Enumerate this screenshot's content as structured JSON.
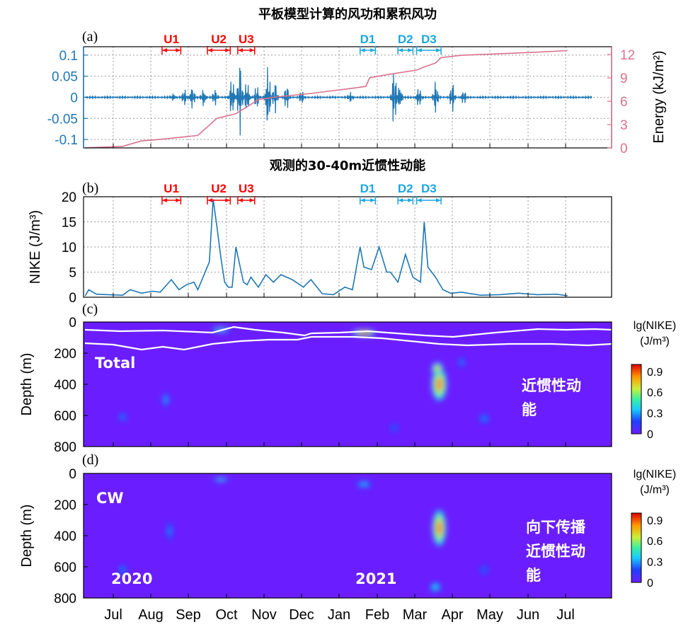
{
  "chart_data": [
    {
      "panel": "(a)",
      "type": "line",
      "title": "平板模型计算的风功和累积风功",
      "x_tick_labels": [
        "Jul",
        "Aug",
        "Sep",
        "Oct",
        "Nov",
        "Dec",
        "Jan",
        "Feb",
        "Mar",
        "Apr",
        "May",
        "Jun",
        "Jul"
      ],
      "ylim_left": [
        -0.12,
        0.12
      ],
      "yticks_left": [
        "0.1",
        "0.05",
        "0",
        "-0.05",
        "-0.1"
      ],
      "ylim_right": [
        0,
        13
      ],
      "yticks_right": [
        "12",
        "9",
        "6",
        "3",
        "0"
      ],
      "ylabel_right": "Energy (kJ/m²)",
      "grid": true,
      "series": [
        {
          "name": "",
          "color": "#1f77b4",
          "axis": "left",
          "note_values": "oscillating wind work; peaks ~0.1 near mid-Oct and early Nov"
        },
        {
          "color": "#d9728f",
          "axis": "right",
          "x_month_index": [
            0.0,
            1.0,
            1.5,
            2.0,
            3.0,
            3.5,
            4.0,
            4.4,
            4.6,
            5.0,
            6.0,
            7.0,
            7.45,
            7.55,
            8.0,
            8.8,
            9.0,
            9.3,
            9.45,
            10.0,
            11.0,
            12.0,
            12.8
          ],
          "values": [
            0.0,
            0.2,
            0.9,
            1.1,
            1.6,
            3.8,
            4.4,
            5.6,
            6.2,
            6.5,
            7.0,
            7.6,
            7.9,
            9.0,
            9.4,
            10.0,
            10.4,
            10.9,
            11.6,
            11.9,
            12.1,
            12.3,
            12.5
          ]
        }
      ],
      "events": [
        {
          "label": "U1",
          "color": "#ff0000",
          "start": 2.05,
          "end": 2.55
        },
        {
          "label": "U2",
          "color": "#ff0000",
          "start": 3.25,
          "end": 3.85
        },
        {
          "label": "U3",
          "color": "#ff0000",
          "start": 4.05,
          "end": 4.5
        },
        {
          "label": "D1",
          "color": "#1aa7e0",
          "start": 7.3,
          "end": 7.7
        },
        {
          "label": "D2",
          "color": "#1aa7e0",
          "start": 8.3,
          "end": 8.7
        },
        {
          "label": "D3",
          "color": "#1aa7e0",
          "start": 8.8,
          "end": 9.45
        }
      ]
    },
    {
      "panel": "(b)",
      "type": "line",
      "title": "观测的30-40m近惯性动能",
      "ylabel": "NIKE (J/m³)",
      "ylim": [
        0,
        20
      ],
      "yticks": [
        "20",
        "15",
        "10",
        "5",
        "0"
      ],
      "grid": true,
      "series": [
        {
          "color": "#1f77b4",
          "x_month_index": [
            0.0,
            0.1,
            0.3,
            0.6,
            1.0,
            1.2,
            1.5,
            1.8,
            2.0,
            2.3,
            2.5,
            2.7,
            2.9,
            3.0,
            3.3,
            3.4,
            3.5,
            3.6,
            3.7,
            3.8,
            3.9,
            4.0,
            4.2,
            4.3,
            4.4,
            4.6,
            4.8,
            5.0,
            5.2,
            5.5,
            5.8,
            6.0,
            6.3,
            6.6,
            6.9,
            7.1,
            7.3,
            7.4,
            7.6,
            7.8,
            8.0,
            8.1,
            8.3,
            8.5,
            8.7,
            8.9,
            9.0,
            9.1,
            9.3,
            9.5,
            9.7,
            10.0,
            10.5,
            11.0,
            11.5,
            12.0,
            12.5,
            12.8
          ],
          "values": [
            0.3,
            1.5,
            0.6,
            0.5,
            0.4,
            1.5,
            0.8,
            1.2,
            1.0,
            3.5,
            1.5,
            2.5,
            3.0,
            1.5,
            7.0,
            19.5,
            14.0,
            8.0,
            3.0,
            2.0,
            2.0,
            10.0,
            3.0,
            2.5,
            4.0,
            2.0,
            4.5,
            3.0,
            4.5,
            3.5,
            2.0,
            3.5,
            0.7,
            0.5,
            2.0,
            1.5,
            10.0,
            6.0,
            5.5,
            10.0,
            5.0,
            5.0,
            3.0,
            8.5,
            4.0,
            3.0,
            15.0,
            6.0,
            4.0,
            1.5,
            0.8,
            1.0,
            0.4,
            0.5,
            0.8,
            0.5,
            0.6,
            0.3
          ]
        }
      ],
      "events": [
        {
          "label": "U1",
          "color": "#ff0000",
          "start": 2.05,
          "end": 2.55
        },
        {
          "label": "U2",
          "color": "#ff0000",
          "start": 3.25,
          "end": 3.85
        },
        {
          "label": "U3",
          "color": "#ff0000",
          "start": 4.05,
          "end": 4.5
        },
        {
          "label": "D1",
          "color": "#1aa7e0",
          "start": 7.3,
          "end": 7.7
        },
        {
          "label": "D2",
          "color": "#1aa7e0",
          "start": 8.3,
          "end": 8.7
        },
        {
          "label": "D3",
          "color": "#1aa7e0",
          "start": 8.8,
          "end": 9.45
        }
      ]
    },
    {
      "panel": "(c)",
      "type": "heatmap",
      "ylabel": "Depth (m)",
      "ylim": [
        800,
        0
      ],
      "yticks": [
        "0",
        "200",
        "400",
        "600",
        "800"
      ],
      "inner_label": "Total",
      "side_text_lines": [
        "近惯性动",
        "能"
      ],
      "colorbar": {
        "title_lines": [
          "lg(NIKE)",
          "(J/m³)"
        ],
        "ticks": [
          "0.9",
          "0.6",
          "0.3",
          "0"
        ],
        "range": [
          0,
          1.0
        ]
      },
      "blobs": [
        {
          "x": 9.4,
          "depth": 400,
          "w": 0.2,
          "h": 210,
          "v": 0.85
        },
        {
          "x": 9.35,
          "depth": 300,
          "w": 0.15,
          "h": 80,
          "v": 0.75
        },
        {
          "x": 7.4,
          "depth": 70,
          "w": 0.3,
          "h": 40,
          "v": 0.9
        },
        {
          "x": 3.6,
          "depth": 50,
          "w": 0.25,
          "h": 30,
          "v": 0.55
        },
        {
          "x": 2.15,
          "depth": 500,
          "w": 0.08,
          "h": 90,
          "v": 0.35
        },
        {
          "x": 1.0,
          "depth": 610,
          "w": 0.1,
          "h": 50,
          "v": 0.3
        },
        {
          "x": 10.6,
          "depth": 620,
          "w": 0.12,
          "h": 60,
          "v": 0.3
        },
        {
          "x": 10.0,
          "depth": 260,
          "w": 0.08,
          "h": 60,
          "v": 0.3
        },
        {
          "x": 8.2,
          "depth": 680,
          "w": 0.1,
          "h": 50,
          "v": 0.25
        }
      ]
    },
    {
      "panel": "(d)",
      "type": "heatmap",
      "ylabel": "Depth (m)",
      "ylim": [
        800,
        0
      ],
      "yticks": [
        "0",
        "200",
        "400",
        "600",
        "800"
      ],
      "inner_label": "CW",
      "side_text_lines": [
        "向下传播",
        "近惯性动",
        "能"
      ],
      "year_labels": [
        "2020",
        "2021"
      ],
      "colorbar": {
        "title_lines": [
          "lg(NIKE)",
          "(J/m³)"
        ],
        "ticks": [
          "0.9",
          "0.6",
          "0.3",
          "0"
        ],
        "range": [
          0,
          1.0
        ]
      },
      "blobs": [
        {
          "x": 9.4,
          "depth": 350,
          "w": 0.18,
          "h": 230,
          "v": 0.85
        },
        {
          "x": 9.3,
          "depth": 730,
          "w": 0.15,
          "h": 60,
          "v": 0.45
        },
        {
          "x": 7.4,
          "depth": 70,
          "w": 0.2,
          "h": 40,
          "v": 0.4
        },
        {
          "x": 3.6,
          "depth": 40,
          "w": 0.2,
          "h": 25,
          "v": 0.5
        },
        {
          "x": 2.25,
          "depth": 370,
          "w": 0.08,
          "h": 110,
          "v": 0.3
        },
        {
          "x": 1.0,
          "depth": 620,
          "w": 0.1,
          "h": 60,
          "v": 0.3
        },
        {
          "x": 10.6,
          "depth": 620,
          "w": 0.1,
          "h": 60,
          "v": 0.25
        }
      ]
    }
  ]
}
